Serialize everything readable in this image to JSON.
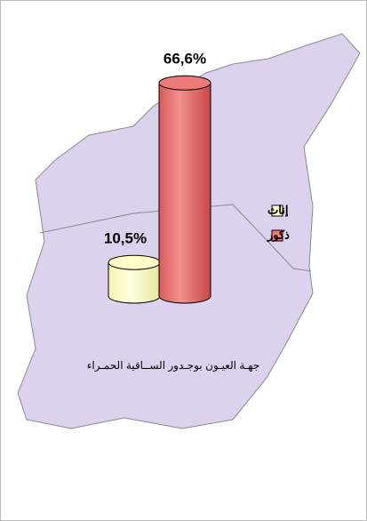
{
  "chart_data": {
    "type": "bar",
    "categories": [
      "جهـة العيـون بوجـدور الســاقية الحمـراء"
    ],
    "series": [
      {
        "name": "إناث",
        "color": "#ffffc8",
        "values": [
          10.5
        ],
        "value_labels": [
          "10,5%"
        ]
      },
      {
        "name": "ذكور",
        "color": "#ee7a7a",
        "values": [
          66.6
        ],
        "value_labels": [
          "66,6%"
        ]
      }
    ]
  }
}
